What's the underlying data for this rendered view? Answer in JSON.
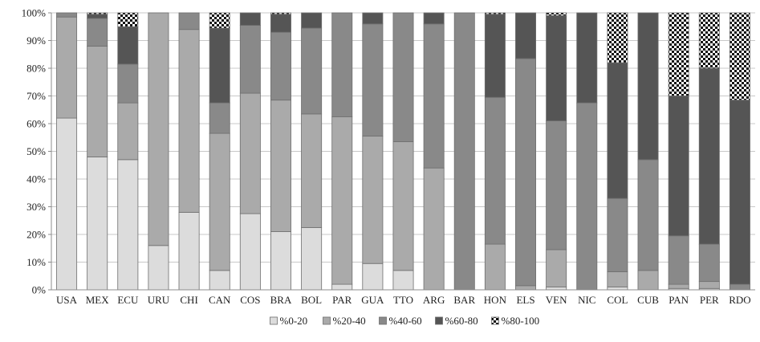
{
  "chart_data": {
    "type": "bar",
    "stacked": true,
    "title": "",
    "xlabel": "",
    "ylabel": "",
    "ylim": [
      0,
      100
    ],
    "y_ticks": [
      "0%",
      "10%",
      "20%",
      "30%",
      "40%",
      "50%",
      "60%",
      "70%",
      "80%",
      "90%",
      "100%"
    ],
    "grid": true,
    "legend_position": "bottom",
    "categories": [
      "USA",
      "MEX",
      "ECU",
      "URU",
      "CHI",
      "CAN",
      "COS",
      "BRA",
      "BOL",
      "PAR",
      "GUA",
      "TTO",
      "ARG",
      "BAR",
      "HON",
      "ELS",
      "VEN",
      "NIC",
      "COL",
      "CUB",
      "PAN",
      "PER",
      "RDO"
    ],
    "series": [
      {
        "name": "%0-20",
        "color": "#dcdcdc",
        "pattern": false,
        "values": [
          62,
          48,
          47,
          16,
          28,
          7,
          27.5,
          21,
          22.5,
          2,
          9.5,
          7,
          0,
          0,
          0,
          0,
          1,
          0,
          1,
          0,
          0.5,
          0.5,
          0
        ]
      },
      {
        "name": "%20-40",
        "color": "#aaaaaa",
        "pattern": false,
        "values": [
          36.5,
          40,
          20.5,
          84,
          66,
          49.5,
          43.5,
          47.5,
          41,
          60.5,
          46,
          46.5,
          44,
          0,
          16.5,
          1.5,
          13.5,
          0,
          5.5,
          7,
          1.5,
          2.5,
          0
        ]
      },
      {
        "name": "%40-60",
        "color": "#898989",
        "pattern": false,
        "values": [
          1.5,
          10,
          14,
          0,
          6,
          11,
          24.5,
          24.5,
          31,
          37.5,
          40.5,
          46.5,
          52,
          100,
          53,
          82,
          46.5,
          67.5,
          26.5,
          40,
          17.5,
          13.5,
          2
        ]
      },
      {
        "name": "%60-80",
        "color": "#555555",
        "pattern": false,
        "values": [
          0,
          1.5,
          13.5,
          0,
          0,
          27,
          4.5,
          6.5,
          5.5,
          0,
          4,
          0,
          4,
          0,
          30,
          16.5,
          38,
          32.5,
          49,
          53,
          50.5,
          63.5,
          66.5
        ]
      },
      {
        "name": "%80-100",
        "color": "#111111",
        "pattern": true,
        "values": [
          0,
          0.5,
          5,
          0,
          0,
          5.5,
          0,
          0.5,
          0,
          0,
          0,
          0,
          0,
          0,
          0.5,
          0,
          1,
          0,
          18,
          0,
          30,
          20,
          31.5
        ]
      }
    ]
  }
}
